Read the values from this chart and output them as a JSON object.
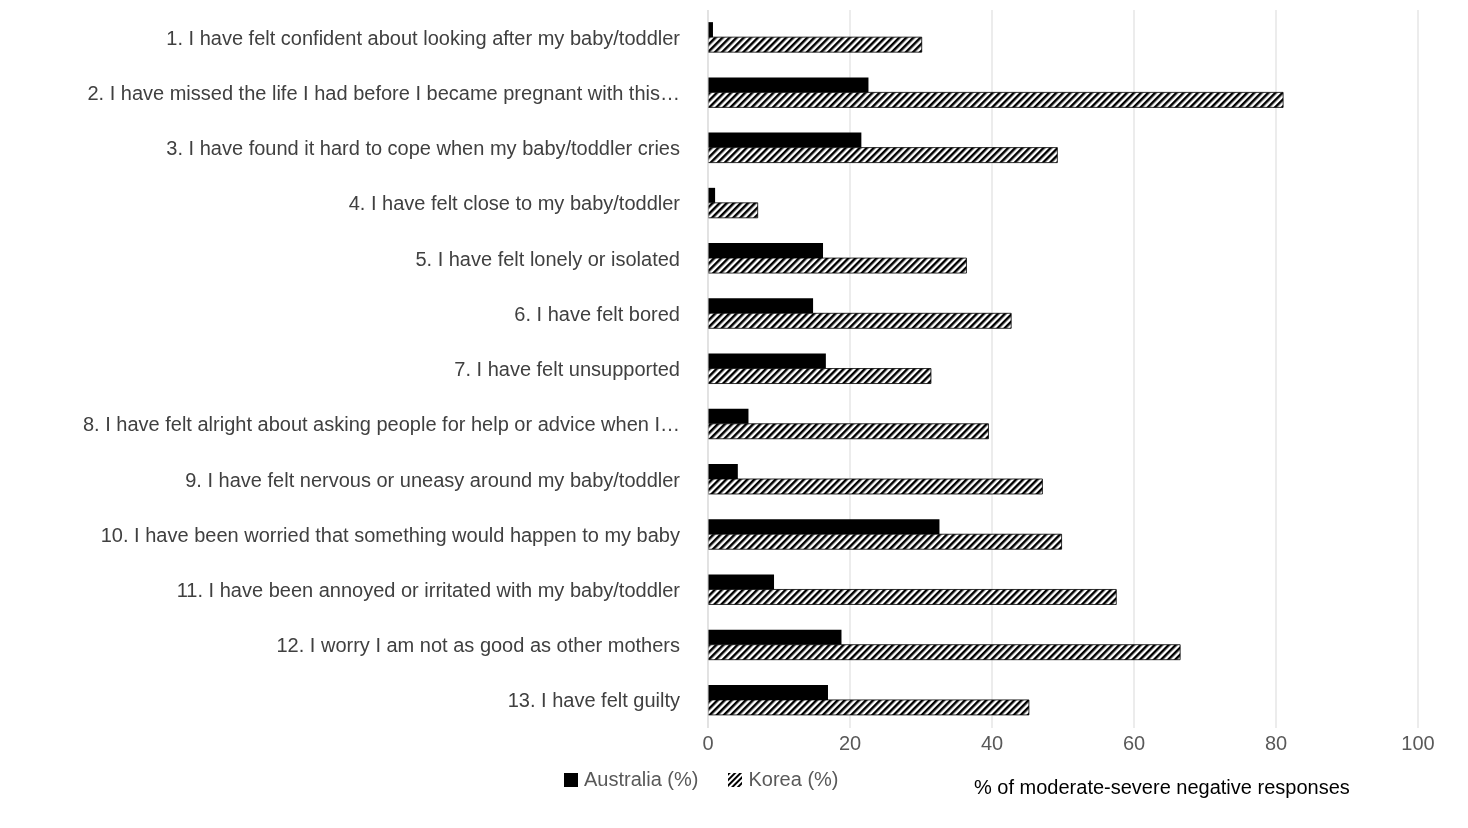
{
  "chart_data": {
    "type": "bar",
    "orientation": "horizontal",
    "categories": [
      "1. I have felt confident about looking after my baby/toddler",
      "2. I have missed the life I had before I became pregnant with this…",
      "3. I have found it hard to cope when my baby/toddler cries",
      "4. I have felt close to my baby/toddler",
      "5. I have felt lonely or isolated",
      "6. I have felt bored",
      "7. I have felt unsupported",
      "8. I have felt alright about asking people for help or advice when I…",
      "9. I have felt nervous or uneasy around my baby/toddler",
      "10. I have been worried that something would happen to my baby",
      "11. I have been annoyed or irritated with my baby/toddler",
      "12. I worry I am not as good as other mothers",
      "13. I have felt guilty"
    ],
    "series": [
      {
        "name": "Australia (%)",
        "color": "#000000",
        "values": [
          0.7,
          22.6,
          21.6,
          1,
          16.2,
          14.8,
          16.6,
          5.7,
          4.2,
          32.6,
          9.3,
          18.8,
          16.9
        ]
      },
      {
        "name": "Korea (%)",
        "color": "#000000",
        "values": [
          30.1,
          81,
          49.2,
          7,
          36.4,
          42.7,
          31.4,
          39.5,
          47.1,
          49.8,
          57.5,
          66.5,
          45.2
        ]
      }
    ],
    "xlabel": "% of moderate-severe negative responses",
    "xlim": [
      0,
      100
    ],
    "xticks": [
      0,
      20,
      40,
      60,
      80,
      100
    ],
    "grid": "x",
    "legend": "bottom"
  }
}
